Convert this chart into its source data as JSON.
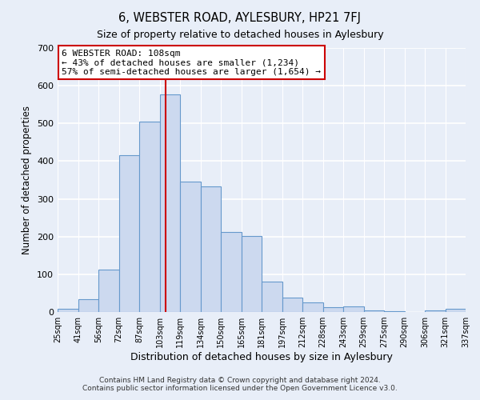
{
  "title": "6, WEBSTER ROAD, AYLESBURY, HP21 7FJ",
  "subtitle": "Size of property relative to detached houses in Aylesbury",
  "xlabel": "Distribution of detached houses by size in Aylesbury",
  "ylabel": "Number of detached properties",
  "bar_labels": [
    "25sqm",
    "41sqm",
    "56sqm",
    "72sqm",
    "87sqm",
    "103sqm",
    "119sqm",
    "134sqm",
    "150sqm",
    "165sqm",
    "181sqm",
    "197sqm",
    "212sqm",
    "228sqm",
    "243sqm",
    "259sqm",
    "275sqm",
    "290sqm",
    "306sqm",
    "321sqm",
    "337sqm"
  ],
  "bar_values": [
    8,
    35,
    112,
    415,
    505,
    578,
    345,
    333,
    213,
    201,
    80,
    38,
    25,
    13,
    15,
    5,
    2,
    0,
    5,
    8
  ],
  "bar_color": "#ccd9ef",
  "bar_edge_color": "#6699cc",
  "vline_color": "#cc0000",
  "annotation_title": "6 WEBSTER ROAD: 108sqm",
  "annotation_line1": "← 43% of detached houses are smaller (1,234)",
  "annotation_line2": "57% of semi-detached houses are larger (1,654) →",
  "annotation_box_color": "#ffffff",
  "annotation_box_edge": "#cc0000",
  "ylim": [
    0,
    700
  ],
  "yticks": [
    0,
    100,
    200,
    300,
    400,
    500,
    600,
    700
  ],
  "footer1": "Contains HM Land Registry data © Crown copyright and database right 2024.",
  "footer2": "Contains public sector information licensed under the Open Government Licence v3.0.",
  "bg_color": "#e8eef8",
  "plot_bg_color": "#e8eef8",
  "grid_color": "#ffffff"
}
